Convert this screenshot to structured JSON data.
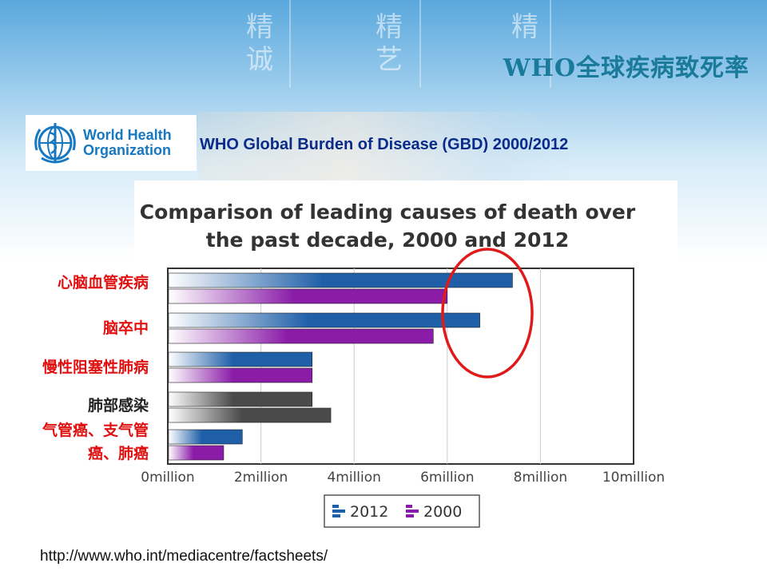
{
  "slide": {
    "title": "WHO全球疾病致死率",
    "subtitle": "WHO  Global Burden of Disease (GBD) 2000/2012",
    "url": "http://www.who.int/mediacentre/factsheets/",
    "decor": [
      "精",
      "诚",
      "精",
      "艺",
      "精"
    ]
  },
  "logo": {
    "line1": "World Health",
    "line2": "Organization",
    "color": "#1778c2"
  },
  "category_labels": [
    {
      "text": "心脑血管疾病",
      "color": "#e01010"
    },
    {
      "text": "脑卒中",
      "color": "#e01010"
    },
    {
      "text": "慢性阻塞性肺病",
      "color": "#e01010"
    },
    {
      "text": "肺部感染",
      "color": "#222222"
    },
    {
      "text": "气管癌、支气管",
      "color": "#e01010"
    },
    {
      "text": "癌、肺癌",
      "color": "#e01010"
    }
  ],
  "chart_data": {
    "type": "bar",
    "orientation": "horizontal",
    "title": "Comparison of leading causes of death over the past decade, 2000 and 2012",
    "title_lines": [
      "Comparison of leading causes of death over",
      "the past decade, 2000 and 2012"
    ],
    "categories": [
      "心脑血管疾病",
      "脑卒中",
      "慢性阻塞性肺病",
      "肺部感染",
      "气管癌、支气管癌、肺癌"
    ],
    "series": [
      {
        "name": "2012",
        "values": [
          7.4,
          6.7,
          3.1,
          3.1,
          1.6
        ],
        "color": "#1f5fa8"
      },
      {
        "name": "2000",
        "values": [
          6.0,
          5.7,
          3.1,
          3.5,
          1.2
        ],
        "color": "#8a1ca8"
      }
    ],
    "highlight_series_colors": {
      "row4": [
        "#4a4a4a",
        "#4a4a4a"
      ]
    },
    "xlim": [
      0,
      10
    ],
    "xticks": [
      "0million",
      "2million",
      "4million",
      "6million",
      "8million",
      "10million"
    ],
    "grid": true,
    "legend_position": "bottom-center",
    "annotation": "red ellipse around top two 2012 bars"
  }
}
